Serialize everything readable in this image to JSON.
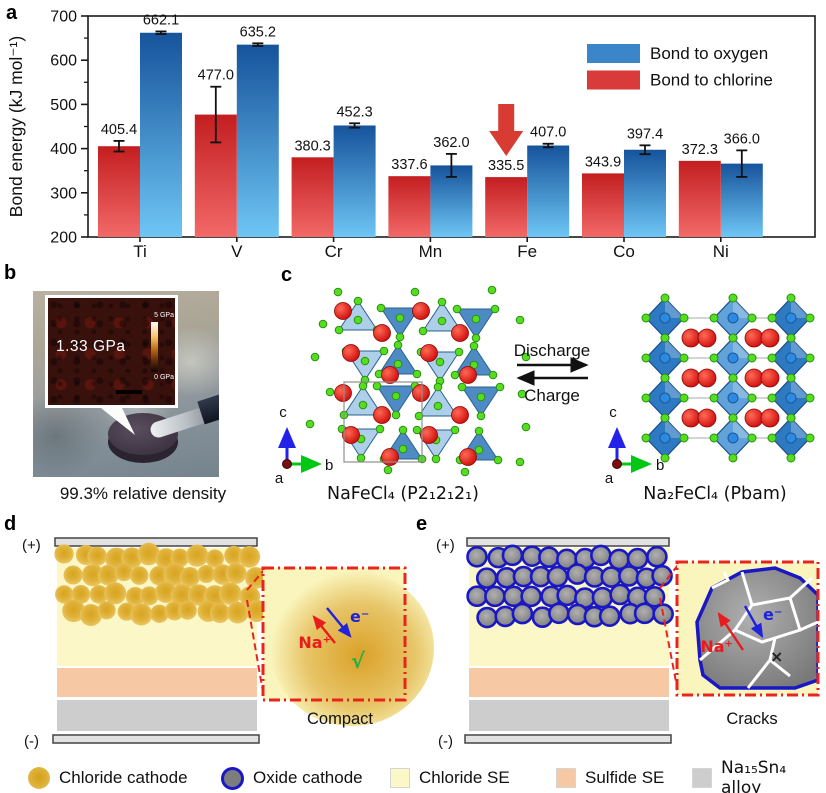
{
  "figure": {
    "panel_letters": {
      "a": "a",
      "b": "b",
      "c": "c",
      "d": "d",
      "e": "e"
    }
  },
  "chart_data": {
    "type": "bar",
    "categories": [
      "Ti",
      "V",
      "Cr",
      "Mn",
      "Fe",
      "Co",
      "Ni"
    ],
    "series": [
      {
        "name": "Bond to oxygen",
        "position": "right",
        "legend_color": "#3a86c8",
        "bar_gradient": [
          "#16539b",
          "#6ec6f5"
        ],
        "values": [
          662.1,
          635.2,
          452.3,
          362.0,
          407.0,
          397.4,
          366.0
        ],
        "errors": [
          3,
          3,
          5,
          26,
          4,
          10,
          30
        ]
      },
      {
        "name": "Bond to chlorine",
        "position": "left",
        "legend_color": "#d93a3a",
        "bar_gradient": [
          "#c31e20",
          "#f26968"
        ],
        "values": [
          405.4,
          477.0,
          380.3,
          337.6,
          335.5,
          343.9,
          372.3
        ],
        "errors": [
          12,
          63,
          0,
          0,
          0,
          0,
          0
        ]
      }
    ],
    "ylabel": "Bond energy (kJ mol⁻¹)",
    "ylim": [
      200,
      700
    ],
    "ytick_step": 100,
    "grid": false,
    "legend_position": "top-right",
    "highlight": {
      "category": "Fe",
      "marker": "red-down-arrow",
      "color": "#d83b32"
    }
  },
  "panel_b": {
    "inset_value": "1.33 GPa",
    "scalebar_top": "5 GPa",
    "scalebar_bottom": "0 GPa",
    "caption": "99.3% relative density"
  },
  "panel_c": {
    "left_formula": "NaFeCl₄ (P2₁2₁2₁)",
    "right_formula": "Na₂FeCl₄ (Pbam)",
    "forward_label": "Discharge",
    "reverse_label": "Charge",
    "axis": {
      "a": "a",
      "b": "b",
      "c": "c"
    }
  },
  "panel_d": {
    "positive": "(+)",
    "negative": "(-)",
    "ion_label": "Na⁺",
    "electron_label": "e⁻",
    "status_mark": "√",
    "caption": "Compact"
  },
  "panel_e": {
    "positive": "(+)",
    "negative": "(-)",
    "ion_label": "Na⁺",
    "electron_label": "e⁻",
    "status_mark": "×",
    "caption": "Cracks"
  },
  "layers": {
    "chloride_se": "#fbf7c6",
    "sulfide_se": "#f6c9a4",
    "alloy": "#cdcdcd",
    "electrode": "#e2e2e2",
    "oxide_fill": "#7d7d7d",
    "oxide_ring": "#1a18c4",
    "inset_border": "#e8241c"
  },
  "bottom_legend": {
    "items": [
      {
        "label": "Chloride cathode",
        "swatch": "circle",
        "color": "#ddaa28"
      },
      {
        "label": "Oxide cathode",
        "swatch": "circle-ring",
        "color": "#7d7d7d",
        "ring_color": "#1a18c4"
      },
      {
        "label": "Chloride SE",
        "swatch": "square",
        "color": "#fbf7c6"
      },
      {
        "label": "Sulfide SE",
        "swatch": "square",
        "color": "#f6c9a4"
      },
      {
        "label": "Na₁₅Sn₄ alloy",
        "swatch": "square",
        "color": "#cdcdcd"
      }
    ]
  }
}
